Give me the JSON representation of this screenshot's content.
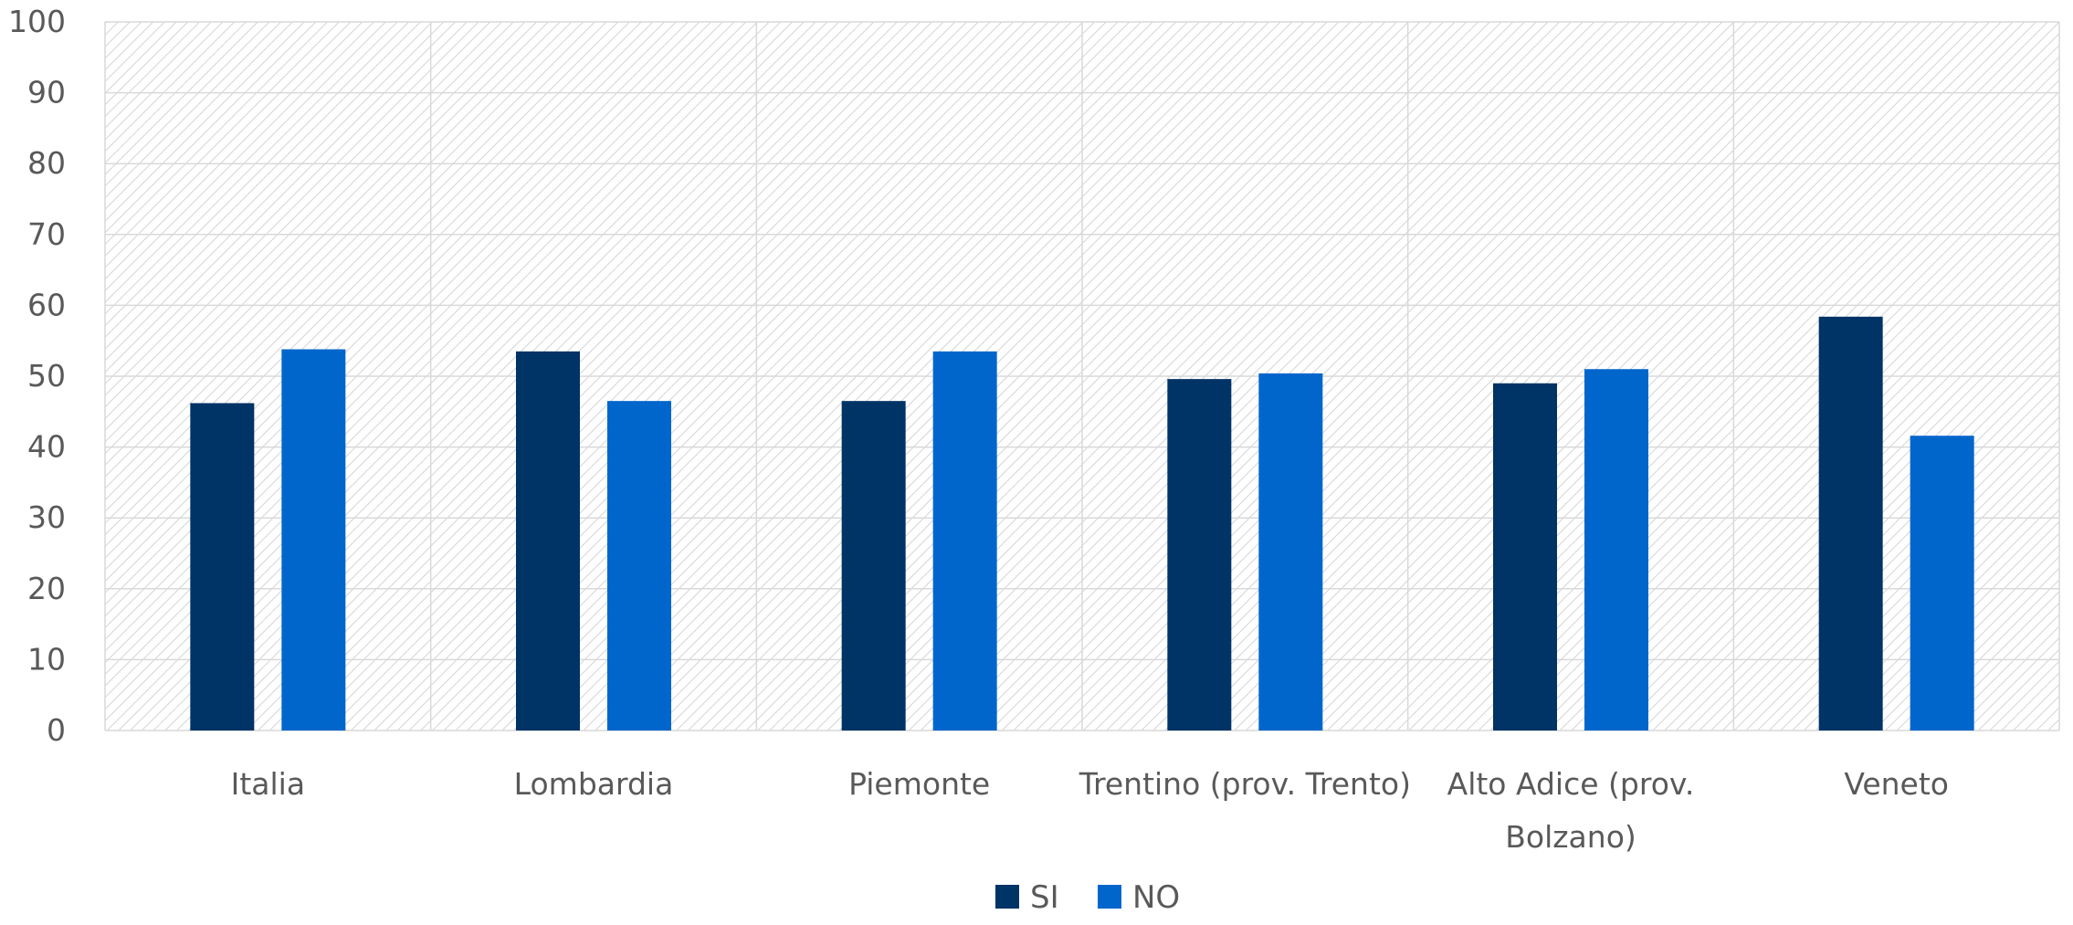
{
  "chart_data": {
    "type": "bar",
    "title": "",
    "xlabel": "",
    "ylabel": "",
    "categories": [
      "Italia",
      "Lombardia",
      "Piemonte",
      "Trentino (prov. Trento)",
      "Alto Adice (prov. Bolzano)",
      "Veneto"
    ],
    "category_label_lines": [
      [
        "Italia"
      ],
      [
        "Lombardia"
      ],
      [
        "Piemonte"
      ],
      [
        "Trentino (prov. Trento)"
      ],
      [
        "Alto Adice (prov.",
        "Bolzano)"
      ],
      [
        "Veneto"
      ]
    ],
    "series": [
      {
        "name": "SI",
        "color": "#003366",
        "values": [
          46.2,
          53.5,
          46.5,
          49.6,
          49.0,
          58.4
        ]
      },
      {
        "name": "NO",
        "color": "#0066CC",
        "values": [
          53.8,
          46.5,
          53.5,
          50.4,
          51.0,
          41.6
        ]
      }
    ],
    "ylim": [
      0,
      100
    ],
    "yticks": [
      0,
      10,
      20,
      30,
      40,
      50,
      60,
      70,
      80,
      90,
      100
    ],
    "grid": true,
    "legend_position": "bottom-center"
  }
}
